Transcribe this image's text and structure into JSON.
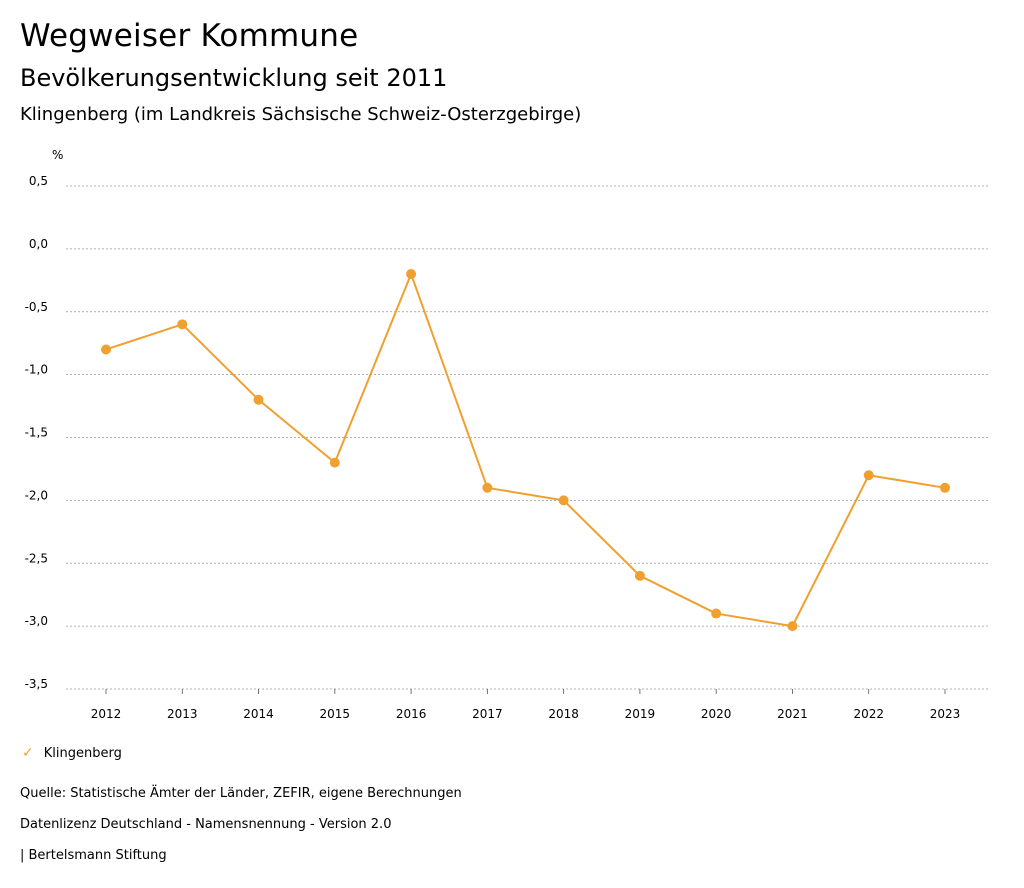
{
  "header": {
    "title": "Wegweiser Kommune",
    "subtitle": "Bevölkerungsentwicklung seit 2011",
    "region": "Klingenberg (im Landkreis Sächsische Schweiz-Osterzgebirge)"
  },
  "chart_data": {
    "type": "line",
    "unit_label": "%",
    "categories": [
      "2012",
      "2013",
      "2014",
      "2015",
      "2016",
      "2017",
      "2018",
      "2019",
      "2020",
      "2021",
      "2022",
      "2023"
    ],
    "series": [
      {
        "name": "Klingenberg",
        "values": [
          -0.8,
          -0.6,
          -1.2,
          -1.7,
          -0.2,
          -1.9,
          -2.0,
          -2.6,
          -2.9,
          -3.0,
          -1.8,
          -1.9
        ]
      }
    ],
    "ylim": [
      -3.5,
      0.5
    ],
    "yticks": [
      0.5,
      0.0,
      -0.5,
      -1.0,
      -1.5,
      -2.0,
      -2.5,
      -3.0,
      -3.5
    ],
    "ytick_labels": [
      "0,5",
      "0,0",
      "-0,5",
      "-1,0",
      "-1,5",
      "-2,0",
      "-2,5",
      "-3,0",
      "-3,5"
    ],
    "grid": true,
    "legend_position": "bottom-left"
  },
  "colors": {
    "series": "#f0a030",
    "grid": "#999999"
  },
  "legend": {
    "label": "Klingenberg",
    "icon": "check-icon"
  },
  "footer": {
    "source": "Quelle: Statistische Ämter der Länder, ZEFIR, eigene Berechnungen",
    "license": "Datenlizenz Deutschland - Namensnennung - Version 2.0",
    "publisher": "| Bertelsmann Stiftung"
  }
}
